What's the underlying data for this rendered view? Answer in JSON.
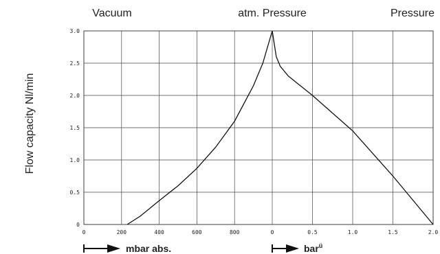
{
  "chart_data": {
    "type": "line",
    "header_labels": [
      "Vacuum",
      "atm. Pressure",
      "Pressure"
    ],
    "ylabel": "Flow capacity Nl/min",
    "xlabel": "mbar abs.",
    "x2label": "bar",
    "x2label_sup": "ü",
    "xlim": [
      0,
      1000
    ],
    "xticks": [
      0,
      200,
      400,
      600,
      800
    ],
    "x2lim": [
      0,
      2
    ],
    "x2ticks": [
      0,
      0.5,
      {
        "value": 1,
        "label": "1.0"
      },
      1.5,
      {
        "value": 2,
        "label": "2.0"
      }
    ],
    "ylim": [
      0,
      3
    ],
    "yticks": [
      0,
      0.5,
      {
        "value": 1,
        "label": "1.0"
      },
      1.5,
      {
        "value": 2,
        "label": "2.0"
      },
      2.5,
      {
        "value": 3,
        "label": "3.0"
      }
    ],
    "grid": true,
    "series": [
      {
        "color": "#111",
        "x": [
          230,
          300,
          400,
          500,
          600,
          700,
          800,
          900,
          950,
          1000
        ],
        "values": [
          0,
          0.13,
          0.37,
          0.6,
          0.87,
          1.2,
          1.6,
          2.15,
          2.5,
          3.0
        ]
      },
      {
        "color": "#111",
        "xaxis": "x2",
        "x": [
          0,
          0.05,
          0.1,
          0.2,
          0.3,
          0.5,
          1.0,
          1.5,
          2.0
        ],
        "values": [
          3.0,
          2.6,
          2.45,
          2.3,
          2.2,
          2.0,
          1.45,
          0.75,
          0
        ]
      }
    ]
  }
}
